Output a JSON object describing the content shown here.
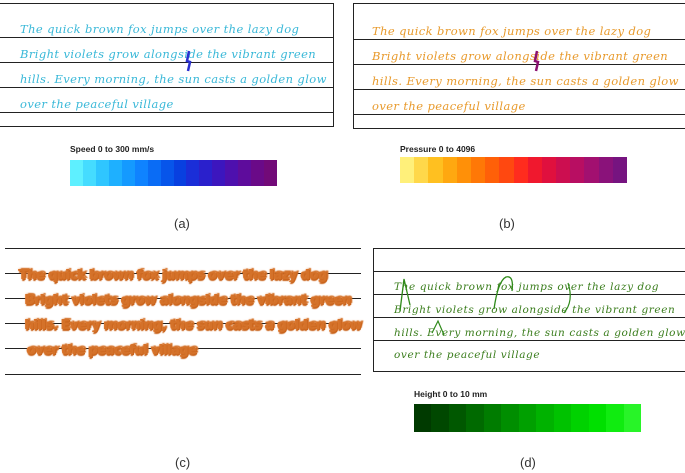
{
  "handwriting_lines": [
    "The quick brown fox jumps over the lazy dog",
    "Bright violets grow alongside the vibrant green",
    "hills. Every morning, the sun casts a golden glow",
    "over the peaceful village"
  ],
  "panel_a": {
    "caption": "(a)",
    "scale_label": "Speed 0 to 300 mm/s",
    "ink_color": "#39b8d8",
    "scale_colors": [
      "#5ef0ff",
      "#45dcff",
      "#2fc6ff",
      "#1eb0ff",
      "#149aff",
      "#0f83ff",
      "#0a6cf5",
      "#0755ea",
      "#0840e0",
      "#1a2ed8",
      "#2a20cc",
      "#3c16be",
      "#4e10ae",
      "#5e0c9c",
      "#6a0a88",
      "#720a78"
    ]
  },
  "panel_b": {
    "caption": "(b)",
    "scale_label": "Pressure 0 to 4096",
    "ink_color": "#e89a2c",
    "scale_colors": [
      "#fff07a",
      "#ffd84a",
      "#ffc020",
      "#ffa810",
      "#ff9008",
      "#ff7806",
      "#ff6008",
      "#ff4810",
      "#ff2c1e",
      "#f0182e",
      "#e0103e",
      "#cc0e50",
      "#b80e62",
      "#a21070",
      "#8a127a",
      "#761480"
    ]
  },
  "panel_c": {
    "caption": "(c)",
    "ink_color": "#d4722a"
  },
  "panel_d": {
    "caption": "(d)",
    "scale_label": "Height 0 to 10 mm",
    "ink_color": "#3a7d1c",
    "scale_colors": [
      "#003a00",
      "#004800",
      "#005800",
      "#006a00",
      "#007c00",
      "#008e00",
      "#00a000",
      "#00b200",
      "#00c200",
      "#00d200",
      "#00e000",
      "#10ec10",
      "#28f428"
    ]
  }
}
